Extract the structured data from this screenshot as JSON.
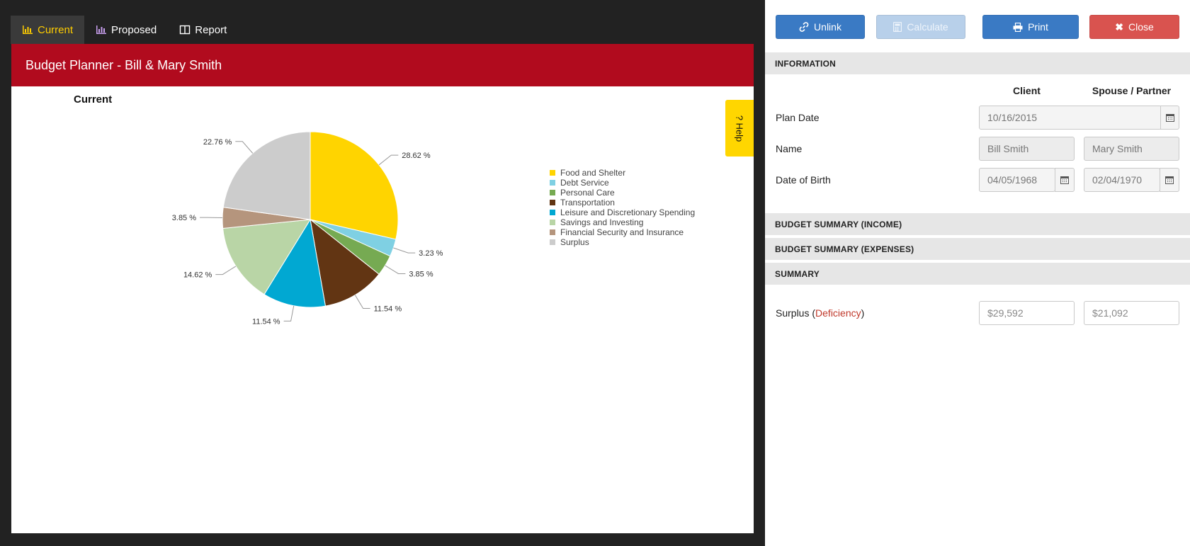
{
  "tabs": [
    {
      "label": "Current",
      "icon": "bar-chart-icon"
    },
    {
      "label": "Proposed",
      "icon": "bar-chart-icon"
    },
    {
      "label": "Report",
      "icon": "columns-icon"
    }
  ],
  "card": {
    "header": "Budget Planner - Bill & Mary Smith",
    "chart_title": "Current",
    "help_label": "? Help"
  },
  "chart_data": {
    "type": "pie",
    "title": "Current",
    "legend_position": "right",
    "slices": [
      {
        "label": "Food and Shelter",
        "value": 28.62,
        "value_label": "28.62 %",
        "color": "#ffd400"
      },
      {
        "label": "Debt Service",
        "value": 3.23,
        "value_label": "3.23 %",
        "color": "#7fd0e3"
      },
      {
        "label": "Personal Care",
        "value": 3.85,
        "value_label": "3.85 %",
        "color": "#76aa52"
      },
      {
        "label": "Transportation",
        "value": 11.54,
        "value_label": "11.54 %",
        "color": "#623513"
      },
      {
        "label": "Leisure and Discretionary Spending",
        "value": 11.54,
        "value_label": "11.54 %",
        "color": "#01a8d2"
      },
      {
        "label": "Savings and Investing",
        "value": 14.62,
        "value_label": "14.62 %",
        "color": "#b9d5a6"
      },
      {
        "label": "Financial Security and Insurance",
        "value": 3.85,
        "value_label": "3.85 %",
        "color": "#b5957d"
      },
      {
        "label": "Surplus",
        "value": 22.76,
        "value_label": "22.76 %",
        "color": "#cccccc"
      }
    ]
  },
  "toolbar": {
    "unlink": "Unlink",
    "calculate": "Calculate",
    "print": "Print",
    "close": "Close"
  },
  "sections": {
    "information": "INFORMATION",
    "income": "BUDGET SUMMARY (INCOME)",
    "expenses": "BUDGET SUMMARY (EXPENSES)",
    "summary": "SUMMARY"
  },
  "columns": {
    "client": "Client",
    "spouse": "Spouse / Partner"
  },
  "form": {
    "plan_date_label": "Plan Date",
    "plan_date": "10/16/2015",
    "name_label": "Name",
    "client_name": "Bill Smith",
    "spouse_name": "Mary Smith",
    "dob_label": "Date of Birth",
    "client_dob": "04/05/1968",
    "spouse_dob": "02/04/1970"
  },
  "summary": {
    "surplus_word": "Surplus (",
    "deficiency_word": "Deficiency",
    "close_paren": ")",
    "client_value": "$29,592",
    "spouse_value": "$21,092"
  },
  "colors": {
    "header_red": "#b10b1e",
    "tab_active": "#ffcd00",
    "button_blue": "#3a7ac4",
    "button_red": "#d9534f",
    "deficiency": "#c0392b"
  }
}
